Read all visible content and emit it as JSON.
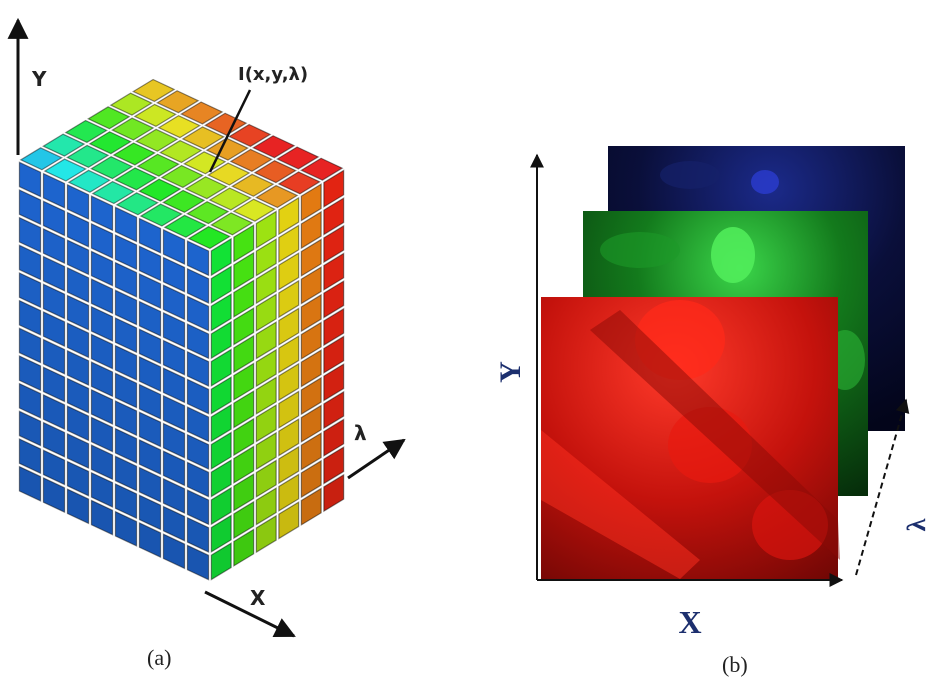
{
  "panel_a": {
    "y_axis": "Y",
    "point_label": "I(x,y,λ)",
    "lambda_axis": "λ",
    "x_axis": "X",
    "caption": "(a)"
  },
  "panel_b": {
    "y_axis": "Y",
    "x_axis": "X",
    "lambda_axis": "λ",
    "caption": "(b)"
  }
}
